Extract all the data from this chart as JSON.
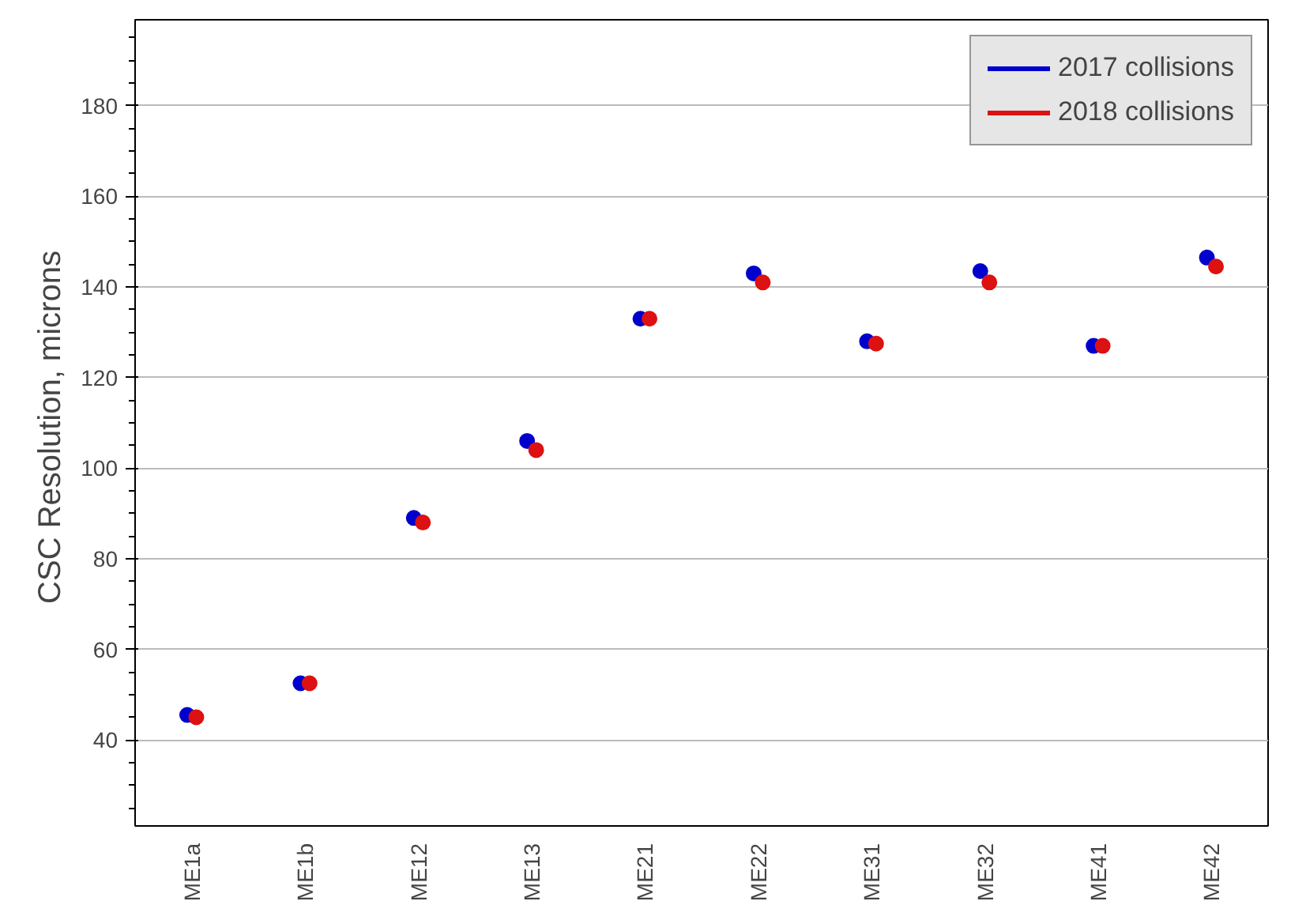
{
  "chart_data": {
    "type": "scatter",
    "ylabel": "CSC  Resolution, microns",
    "categories": [
      "ME1a",
      "ME1b",
      "ME12",
      "ME13",
      "ME21",
      "ME22",
      "ME31",
      "ME32",
      "ME41",
      "ME42"
    ],
    "series": [
      {
        "name": "2017 collisions",
        "color": "#0000cc",
        "values": [
          45.5,
          52.5,
          89,
          106,
          133,
          143,
          128,
          143.5,
          127,
          146.5
        ]
      },
      {
        "name": "2018 collisions",
        "color": "#dd1111",
        "values": [
          45,
          52.5,
          88,
          104,
          133,
          141,
          127.5,
          141,
          127,
          144.5
        ]
      }
    ],
    "ylim": [
      21,
      199
    ],
    "yticks": [
      40,
      60,
      80,
      100,
      120,
      140,
      160,
      180
    ],
    "grid": "y",
    "legend": "top right",
    "marker": "circle"
  }
}
